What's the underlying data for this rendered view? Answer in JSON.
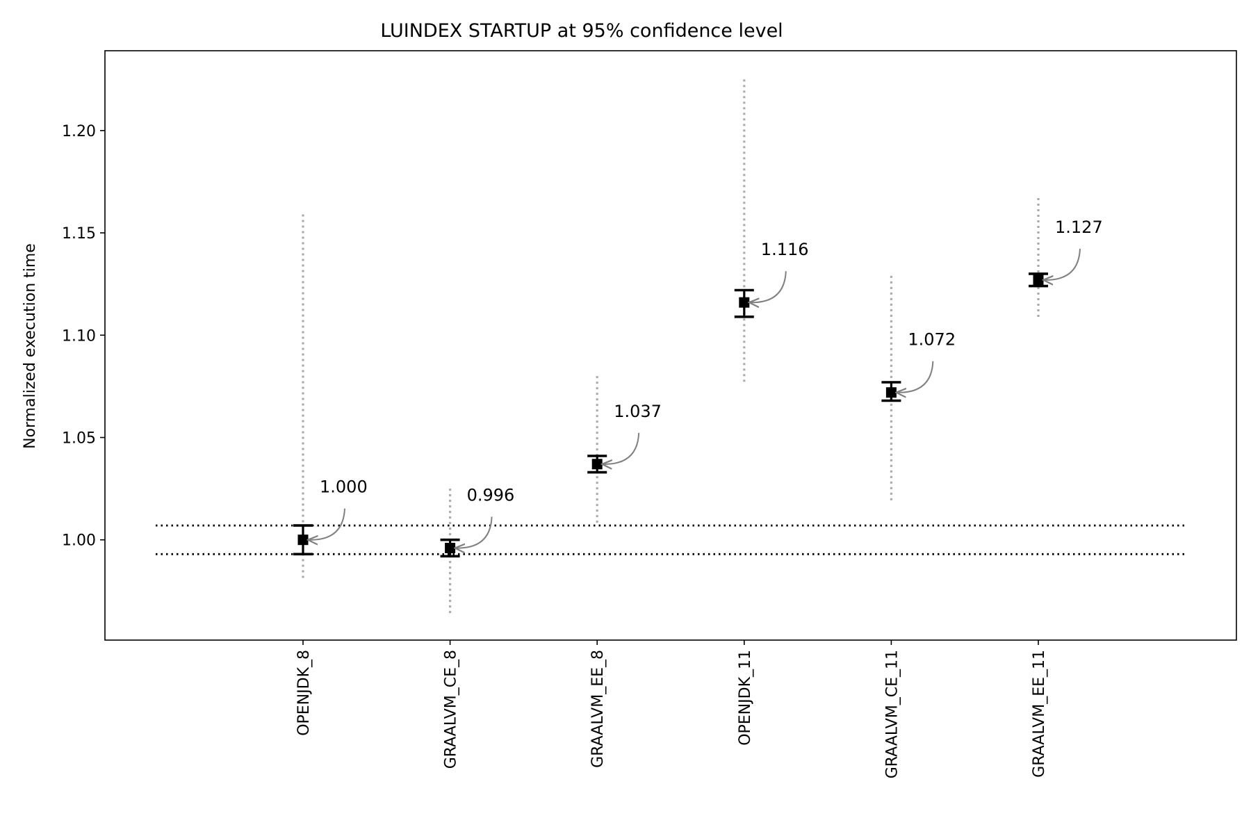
{
  "chart_data": {
    "type": "errorbar",
    "title": "LUINDEX STARTUP at 95% confidence level",
    "xlabel": "",
    "ylabel": "Normalized execution time",
    "categories": [
      "OPENJDK_8",
      "GRAALVM_CE_8",
      "GRAALVM_EE_8",
      "OPENJDK_11",
      "GRAALVM_CE_11",
      "GRAALVM_EE_11"
    ],
    "series": [
      {
        "values": [
          1.0,
          0.996,
          1.037,
          1.116,
          1.072,
          1.127
        ],
        "ci_low": [
          0.993,
          0.992,
          1.033,
          1.109,
          1.068,
          1.124
        ],
        "ci_high": [
          1.007,
          1.0,
          1.041,
          1.122,
          1.077,
          1.13
        ],
        "range_low": [
          0.981,
          0.963,
          1.008,
          1.077,
          1.018,
          1.108
        ],
        "range_high": [
          1.159,
          1.025,
          1.08,
          1.225,
          1.129,
          1.167
        ]
      }
    ],
    "annotations": [
      "1.000",
      "0.996",
      "1.037",
      "1.116",
      "1.072",
      "1.127"
    ],
    "reference_lines": [
      1.007,
      0.993
    ],
    "yticks": [
      "1.00",
      "1.05",
      "1.10",
      "1.15",
      "1.20"
    ],
    "ytick_values": [
      1.0,
      1.05,
      1.1,
      1.15,
      1.2
    ],
    "ylim": [
      0.951,
      1.239
    ],
    "grid": false,
    "legend": "none",
    "colors": {
      "marker": "#000000",
      "range": "#aaaaaa",
      "arrow": "#808080",
      "reference": "#000000"
    }
  }
}
